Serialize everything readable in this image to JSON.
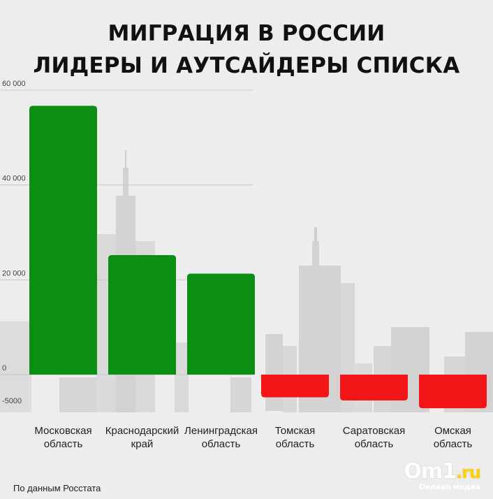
{
  "chart_data": {
    "type": "bar",
    "title_lines": [
      "МИГРАЦИЯ В РОССИИ",
      "ЛИДЕРЫ И АУТСАЙДЕРЫ СПИСКА"
    ],
    "categories": [
      [
        "Московская",
        "область"
      ],
      [
        "Краснодарский",
        "край"
      ],
      [
        "Ленинградская",
        "область"
      ],
      [
        "Томская",
        "область"
      ],
      [
        "Саратовская",
        "область"
      ],
      [
        "Омская",
        "область"
      ]
    ],
    "values": [
      56700,
      25200,
      21300,
      -4400,
      -5000,
      -6500
    ],
    "y_ticks": [
      60000,
      40000,
      20000,
      0,
      -5000
    ],
    "y_tick_labels": [
      "60 000",
      "40 000",
      "20 000",
      "0",
      "-5000"
    ],
    "ylim": [
      -7000,
      60000
    ],
    "grid": true,
    "colors": {
      "positive": "#0a8f14",
      "negative": "#f41616"
    }
  },
  "source": "По данным Росстата",
  "logo": {
    "main": "Om1",
    "suffix": ".ru",
    "sub": "Онлайн медиа"
  }
}
